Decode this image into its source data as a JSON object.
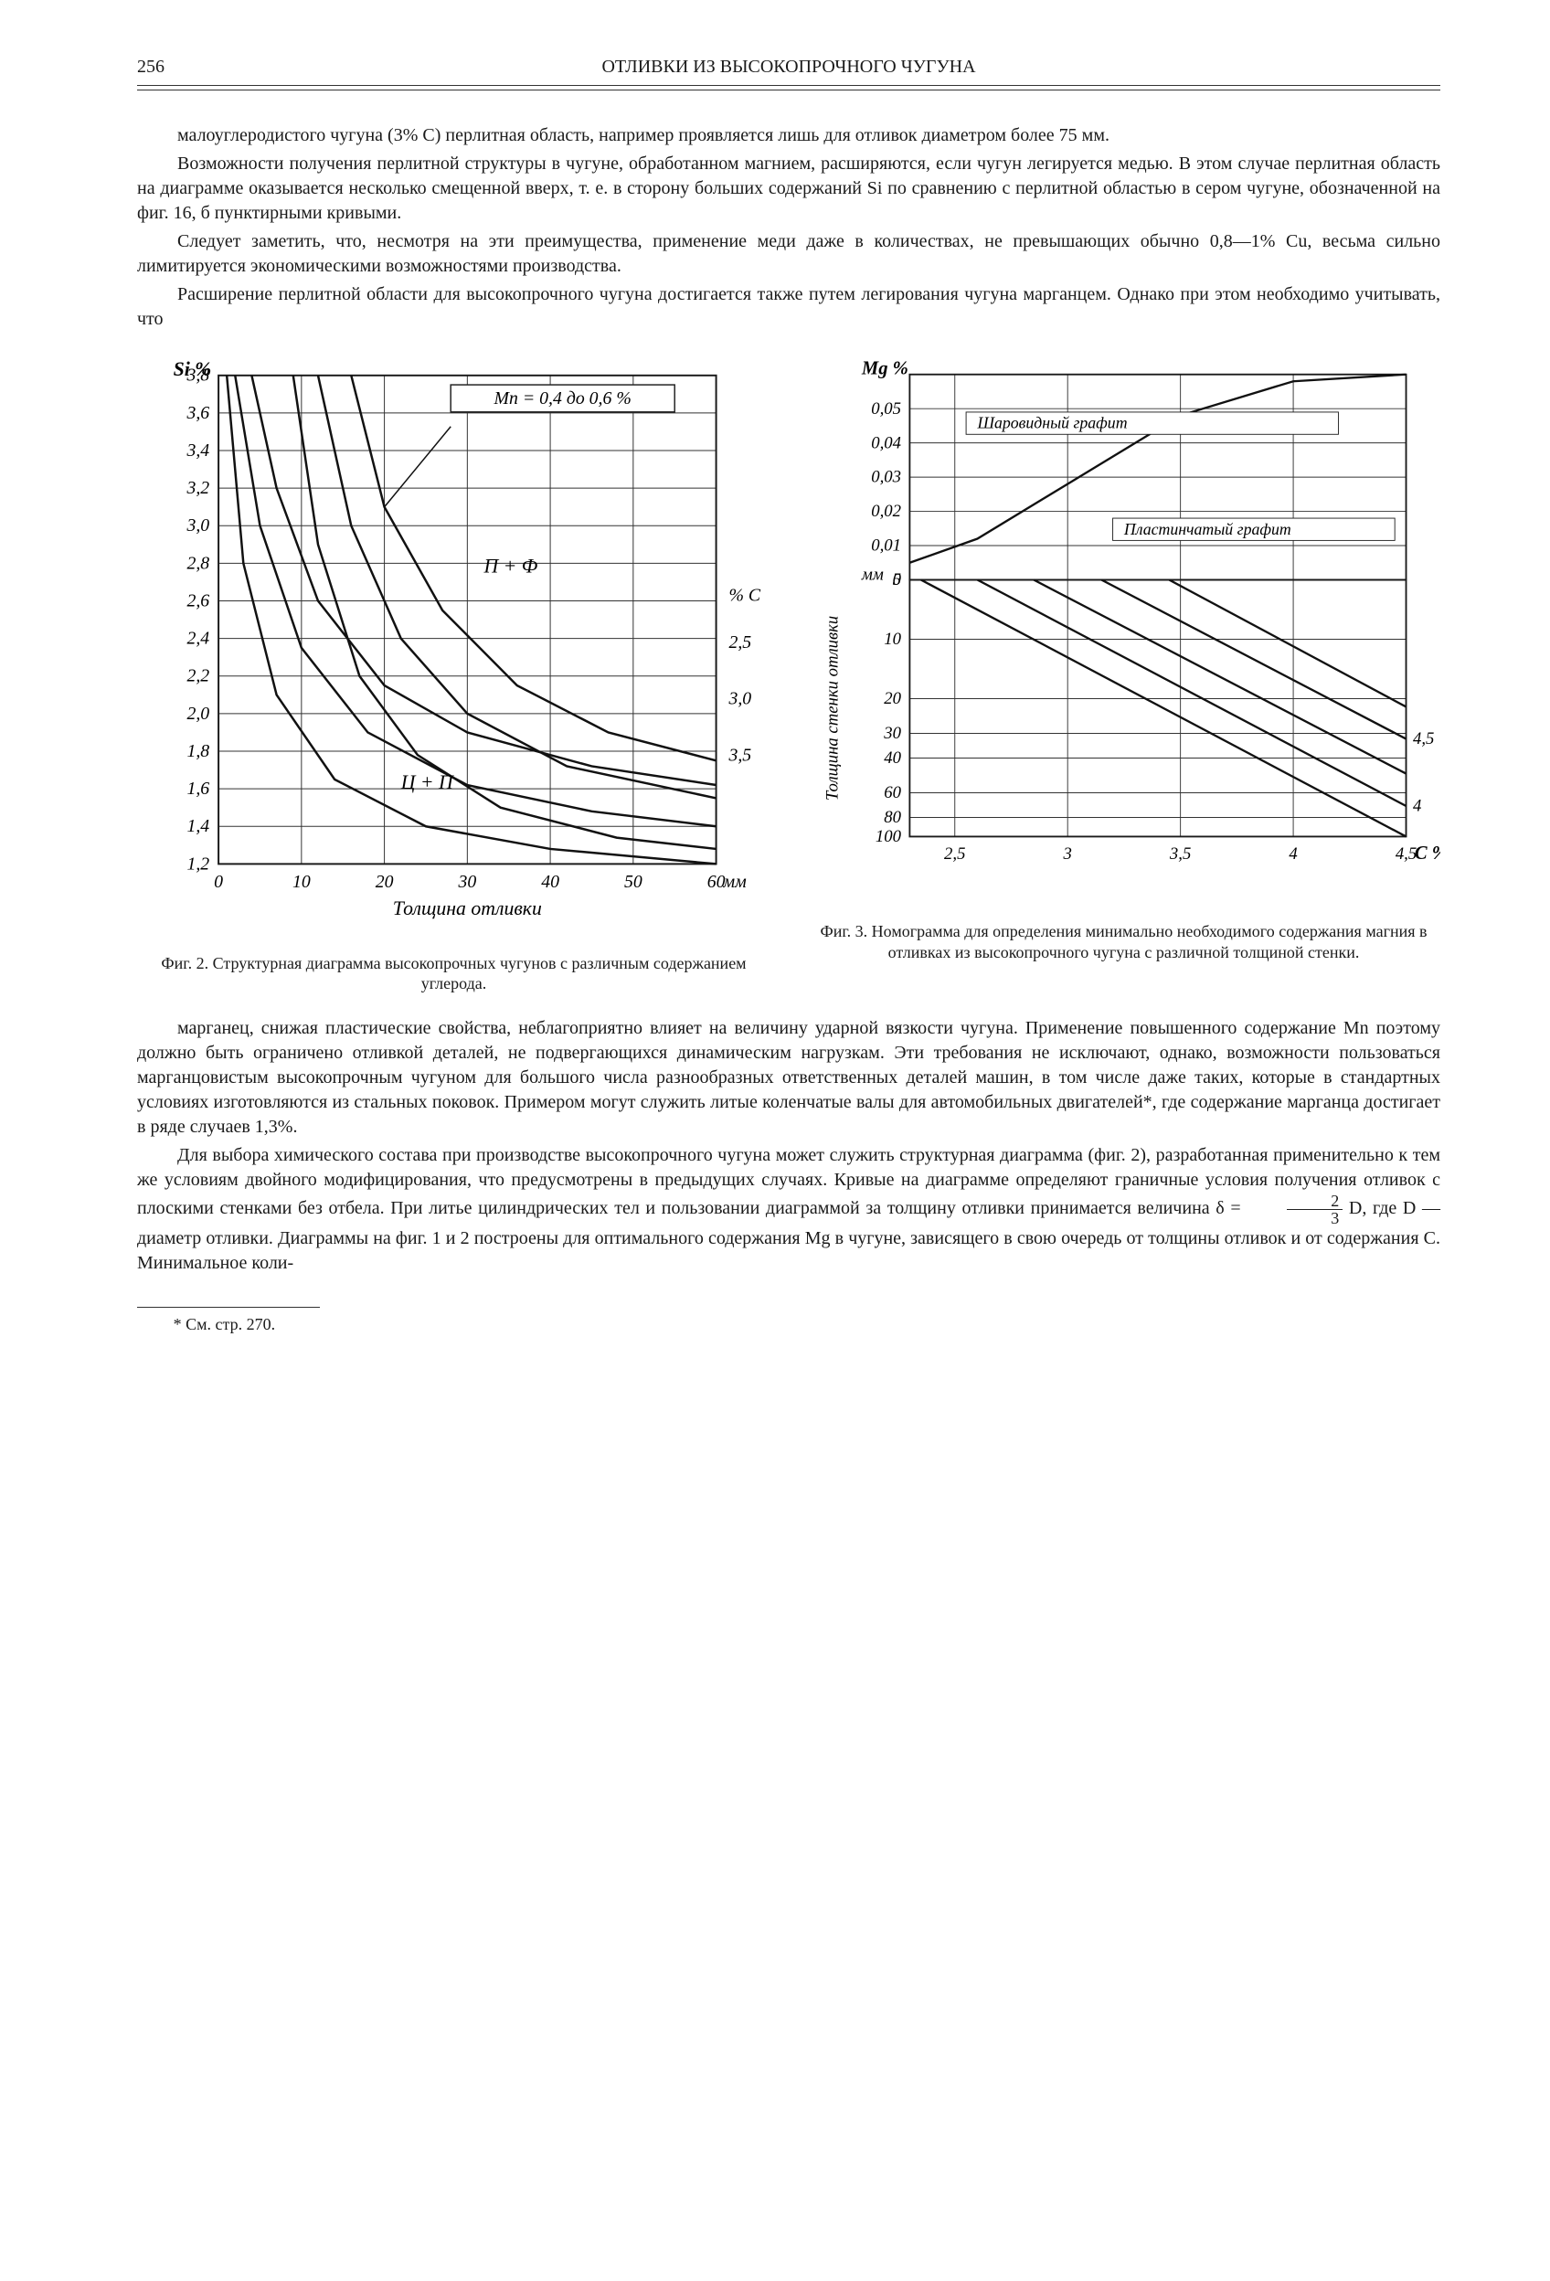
{
  "header": {
    "pageNum": "256",
    "title": "ОТЛИВКИ ИЗ ВЫСОКОПРОЧНОГО ЧУГУНА"
  },
  "para1": "малоуглеродистого чугуна (3% C) перлитная область, например проявляется лишь для отливок диаметром более 75 мм.",
  "para2": "Возможности получения перлитной структуры в чугуне, обработанном магнием, расширяются, если чугун легируется медью. В этом случае перлитная область на диаграмме оказывается несколько смещенной вверх, т. е. в сторону больших содержаний Si по сравнению с перлитной областью в сером чугуне, обозначенной на фиг. 16, б пунктирными кривыми.",
  "para3": "Следует заметить, что, несмотря на эти преимущества, применение меди даже в количествах, не превышающих обычно 0,8—1% Cu, весьма сильно лимитируется экономическими возможностями производства.",
  "para4": "Расширение перлитной области для высокопрочного чугуна достигается также путем легирования чугуна марганцем. Однако при этом необходимо учитывать, что",
  "fig2": {
    "caption": "Фиг. 2. Структурная диаграмма высокопрочных чугунов с различным содержанием углерода.",
    "type": "line",
    "x": {
      "label": "Толщина отливки",
      "unit": "мм",
      "min": 0,
      "max": 60,
      "ticks": [
        0,
        10,
        20,
        30,
        40,
        50,
        60
      ]
    },
    "y": {
      "label": "Si %",
      "min": 1.2,
      "max": 3.8,
      "ticks": [
        1.2,
        1.4,
        1.6,
        1.8,
        2.0,
        2.2,
        2.4,
        2.6,
        2.8,
        3.0,
        3.2,
        3.4,
        3.6,
        3.8
      ]
    },
    "annotations": {
      "mn": "Mn = 0,4 до 0,6 %",
      "upper": "П + Ф",
      "lower": "Ц + П"
    },
    "right_labels": {
      "title": "% C",
      "values": [
        "2,5",
        "3,0",
        "3,5"
      ]
    },
    "colors": {
      "line": "#111111",
      "grid": "#333333",
      "bg": "#ffffff",
      "text": "#1a1a1a"
    },
    "curves": [
      {
        "cLabel": "2,5",
        "upper": [
          [
            4,
            3.8
          ],
          [
            7,
            3.2
          ],
          [
            12,
            2.6
          ],
          [
            20,
            2.15
          ],
          [
            30,
            1.9
          ],
          [
            45,
            1.72
          ],
          [
            60,
            1.62
          ]
        ],
        "lower": [
          [
            16,
            3.8
          ],
          [
            20,
            3.1
          ],
          [
            27,
            2.55
          ],
          [
            36,
            2.15
          ],
          [
            47,
            1.9
          ],
          [
            60,
            1.75
          ]
        ]
      },
      {
        "cLabel": "3,0",
        "upper": [
          [
            2,
            3.8
          ],
          [
            5,
            3.0
          ],
          [
            10,
            2.35
          ],
          [
            18,
            1.9
          ],
          [
            30,
            1.62
          ],
          [
            45,
            1.48
          ],
          [
            60,
            1.4
          ]
        ],
        "lower": [
          [
            12,
            3.8
          ],
          [
            16,
            3.0
          ],
          [
            22,
            2.4
          ],
          [
            30,
            2.0
          ],
          [
            42,
            1.72
          ],
          [
            60,
            1.55
          ]
        ]
      },
      {
        "cLabel": "3,5",
        "upper": [
          [
            1,
            3.8
          ],
          [
            3,
            2.8
          ],
          [
            7,
            2.1
          ],
          [
            14,
            1.65
          ],
          [
            25,
            1.4
          ],
          [
            40,
            1.28
          ],
          [
            60,
            1.2
          ]
        ],
        "lower": [
          [
            9,
            3.8
          ],
          [
            12,
            2.9
          ],
          [
            17,
            2.2
          ],
          [
            24,
            1.78
          ],
          [
            34,
            1.5
          ],
          [
            48,
            1.34
          ],
          [
            60,
            1.28
          ]
        ]
      }
    ]
  },
  "fig3": {
    "caption": "Фиг. 3. Номограмма для определения минимально необходимого содержания магния в отливках из высокопрочного чугуна с различной толщиной стенки.",
    "type": "two-panel-nomogram",
    "upper": {
      "y": {
        "label": "Mg %",
        "ticks": [
          0,
          0.01,
          0.02,
          0.03,
          0.04,
          0.05
        ]
      },
      "regions": {
        "top": "Шаровидный графит",
        "bottom": "Пластинчатый графит"
      },
      "curve": [
        [
          2.3,
          0.005
        ],
        [
          2.6,
          0.012
        ],
        [
          3.0,
          0.028
        ],
        [
          3.5,
          0.048
        ],
        [
          4.0,
          0.058
        ],
        [
          4.5,
          0.06
        ]
      ]
    },
    "lower": {
      "y": {
        "label": "Толщина стенки отливки",
        "unit": "мм",
        "ticks": [
          5,
          10,
          20,
          30,
          40,
          60,
          80,
          100
        ],
        "scale": "log"
      },
      "x": {
        "label": "C %",
        "ticks": [
          2.5,
          3,
          3.5,
          4,
          4.5
        ]
      },
      "lines": [
        [
          [
            2.35,
            5
          ],
          [
            4.5,
            100
          ]
        ],
        [
          [
            2.6,
            5
          ],
          [
            4.5,
            70
          ]
        ],
        [
          [
            2.85,
            5
          ],
          [
            4.5,
            48
          ]
        ],
        [
          [
            3.15,
            5
          ],
          [
            4.5,
            32
          ]
        ],
        [
          [
            3.45,
            5
          ],
          [
            4.5,
            22
          ]
        ]
      ]
    },
    "colors": {
      "line": "#111111",
      "grid": "#333333",
      "bg": "#ffffff",
      "text": "#1a1a1a"
    }
  },
  "para5": "марганец, снижая пластические свойства, неблагоприятно влияет на величину ударной вязкости чугуна. Применение повышенного содержание Mn поэтому должно быть ограничено отливкой деталей, не подвергающихся динамическим нагрузкам. Эти требования не исключают, однако, возможности пользоваться марганцовистым высокопрочным чугуном для большого числа разнообразных ответственных деталей машин, в том числе даже таких, которые в стандартных условиях изготовляются из стальных поковок. Примером могут служить литые коленчатые валы для автомобильных двигателей*, где содержание марганца достигает в ряде случаев 1,3%.",
  "para6a": "Для выбора химического состава при производстве высокопрочного чугуна может служить структурная диаграмма (фиг. 2), разработанная применительно к тем же условиям двойного модифицирования, что предусмотрены в предыдущих случаях. Кривые на диаграмме определяют граничные условия получения отливок с плоскими стенками без отбела. При литье цилиндрических тел и пользовании диаграммой за толщину отливки принимается величина δ = ",
  "para6b": " D, где D — диаметр отливки. Диаграммы на фиг. 1 и 2 построены для оптимального содержания Mg в чугуне, зависящего в свою очередь от толщины отливок и от содержания C. Минимальное коли-",
  "fracNum": "2",
  "fracDen": "3",
  "footnote": "* См. стр. 270."
}
